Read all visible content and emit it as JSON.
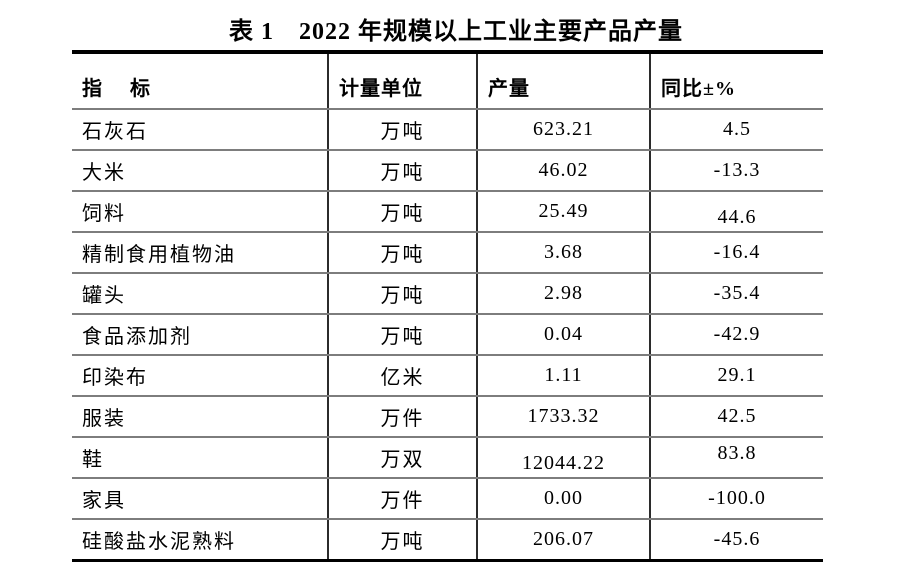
{
  "title": "表 1　2022 年规模以上工业主要产品产量",
  "colors": {
    "text": "#000000",
    "background": "#ffffff",
    "rule_heavy": "#000000",
    "rule_light": "#7d7d7d",
    "rule_vertical": "#2b2b2b"
  },
  "table": {
    "headers": {
      "indicator": "指　 标",
      "unit": "计量单位",
      "output": "产量",
      "yoy": "同比±%"
    },
    "rows": [
      {
        "indicator": "石灰石",
        "unit": "万吨",
        "output": "623.21",
        "yoy": "4.5"
      },
      {
        "indicator": "大米",
        "unit": "万吨",
        "output": "46.02",
        "yoy": "-13.3"
      },
      {
        "indicator": "饲料",
        "unit": "万吨",
        "output": "25.49",
        "yoy": "44.6"
      },
      {
        "indicator": "精制食用植物油",
        "unit": "万吨",
        "output": "3.68",
        "yoy": "-16.4"
      },
      {
        "indicator": "罐头",
        "unit": "万吨",
        "output": "2.98",
        "yoy": "-35.4"
      },
      {
        "indicator": "食品添加剂",
        "unit": "万吨",
        "output": "0.04",
        "yoy": "-42.9"
      },
      {
        "indicator": "印染布",
        "unit": "亿米",
        "output": "1.11",
        "yoy": "29.1"
      },
      {
        "indicator": "服装",
        "unit": "万件",
        "output": "1733.32",
        "yoy": "42.5"
      },
      {
        "indicator": "鞋",
        "unit": "万双",
        "output": "12044.22",
        "yoy": "83.8"
      },
      {
        "indicator": "家具",
        "unit": "万件",
        "output": "0.00",
        "yoy": "-100.0"
      },
      {
        "indicator": "硅酸盐水泥熟料",
        "unit": "万吨",
        "output": "206.07",
        "yoy": "-45.6"
      }
    ]
  }
}
